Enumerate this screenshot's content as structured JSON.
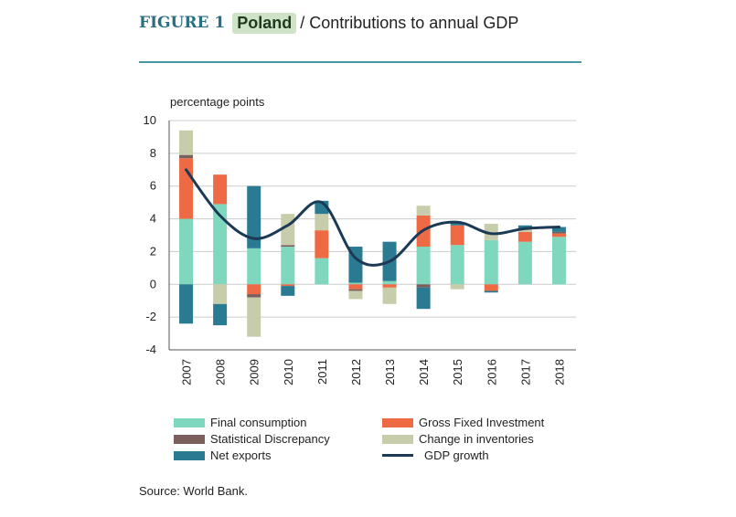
{
  "header": {
    "figure_label": "FIGURE 1",
    "country": "Poland",
    "subtitle": "/ Contributions to annual GDP"
  },
  "source": "Source: World Bank.",
  "colors": {
    "final_consumption": "#7fd8bd",
    "gross_fixed_investment": "#ee6a45",
    "statistical_discrepancy": "#7a5f5d",
    "change_in_inventories": "#c7cdaa",
    "net_exports": "#2a7a92",
    "gdp_growth": "#1c3a56"
  },
  "chart_data": {
    "type": "bar",
    "stacked": true,
    "ylabel": "percentage points",
    "ylim": [
      -4,
      10
    ],
    "yticks": [
      "10",
      "8",
      "6",
      "4",
      "2",
      "0",
      "-2",
      "-4"
    ],
    "categories": [
      "2007",
      "2008",
      "2009",
      "2010",
      "2011",
      "2012",
      "2013",
      "2014",
      "2015",
      "2016",
      "2017",
      "2018"
    ],
    "series": [
      {
        "key": "final_consumption",
        "name": "Final consumption",
        "values": [
          4.0,
          4.9,
          2.2,
          2.3,
          1.6,
          0.1,
          0.2,
          2.3,
          2.4,
          2.7,
          2.6,
          2.9
        ]
      },
      {
        "key": "gross_fixed_investment",
        "name": "Gross Fixed Investment",
        "values": [
          3.7,
          1.8,
          -0.6,
          -0.1,
          1.7,
          -0.3,
          -0.2,
          1.9,
          1.2,
          -0.4,
          0.6,
          0.2
        ]
      },
      {
        "key": "statistical_discrepancy",
        "name": "Statistical Discrepancy",
        "values": [
          0.2,
          0.0,
          -0.2,
          0.1,
          0.0,
          -0.1,
          0.0,
          -0.2,
          0.0,
          0.0,
          0.0,
          0.1
        ]
      },
      {
        "key": "change_in_inventories",
        "name": "Change in inventories",
        "values": [
          1.5,
          -1.2,
          -2.4,
          1.9,
          1.0,
          -0.5,
          -1.0,
          0.6,
          -0.3,
          1.0,
          0.2,
          0.0
        ]
      },
      {
        "key": "net_exports",
        "name": "Net exports",
        "values": [
          -2.4,
          -1.3,
          3.8,
          -0.6,
          0.8,
          2.2,
          2.4,
          -1.3,
          0.2,
          -0.1,
          0.2,
          0.3
        ]
      }
    ],
    "line": {
      "key": "gdp_growth",
      "name": "GDP growth",
      "values": [
        7.0,
        4.2,
        2.8,
        3.6,
        5.0,
        1.6,
        1.4,
        3.3,
        3.8,
        3.1,
        3.4,
        3.5
      ]
    }
  }
}
